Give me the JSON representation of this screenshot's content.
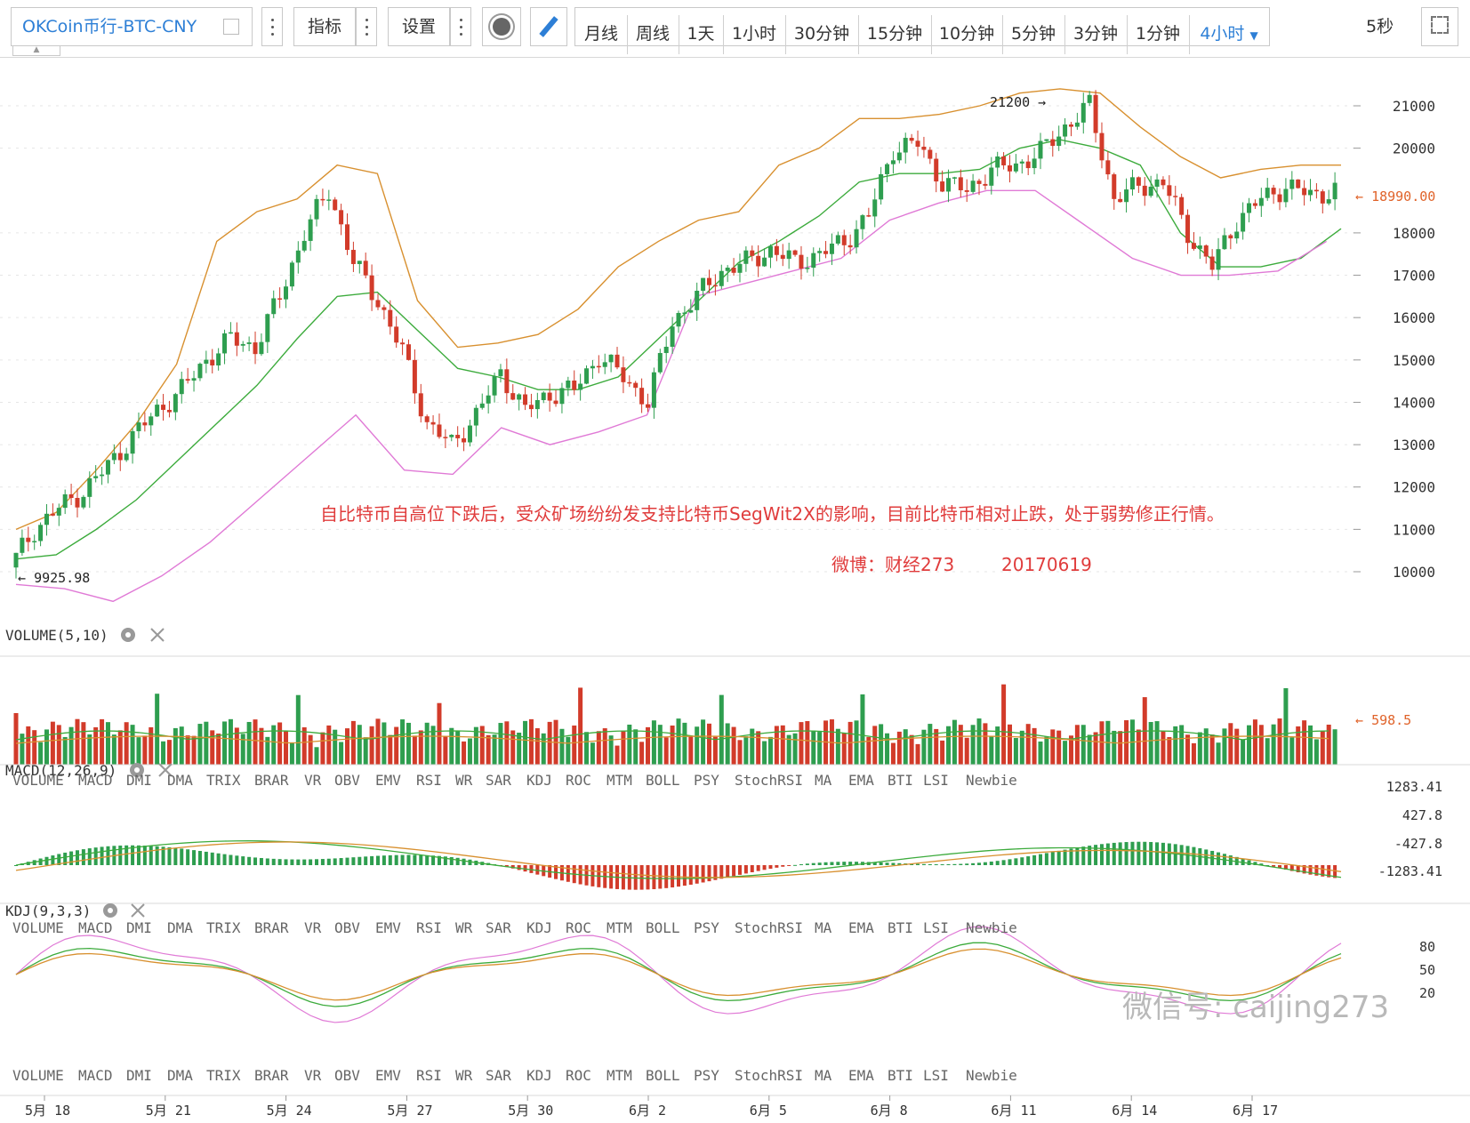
{
  "toolbar": {
    "symbol": "OKCoin币行-BTC-CNY",
    "indicators_label": "指标",
    "settings_label": "设置",
    "periods": [
      "月线",
      "周线",
      "1天",
      "1小时",
      "30分钟",
      "15分钟",
      "10分钟",
      "5分钟",
      "3分钟",
      "1分钟",
      "4小时"
    ],
    "active_period": "4小时",
    "refresh": "5秒"
  },
  "annotations": {
    "high_label": "21200",
    "low_label": "9925.98",
    "last_price": "18990.00",
    "comment": "自比特币自高位下跌后，受众矿场纷纷发支持比特币SegWit2X的影响，目前比特币相对止跌，处于弱势修正行情。",
    "source_name": "微博：财经273",
    "source_date": "20170619",
    "watermark": "微信号: caijing273"
  },
  "panes": {
    "volume": {
      "title": "VOLUME(5,10)",
      "last": "598.5"
    },
    "macd": {
      "title": "MACD(12,26,9)",
      "ticks": [
        "1283.41",
        "427.8",
        "-427.8",
        "-1283.41"
      ]
    },
    "kdj": {
      "title": "KDJ(9,3,3)",
      "ticks": [
        "80",
        "50",
        "20"
      ]
    }
  },
  "indicator_tabs": [
    "VOLUME",
    "MACD",
    "DMI",
    "DMA",
    "TRIX",
    "BRAR",
    "VR",
    "OBV",
    "EMV",
    "RSI",
    "WR",
    "SAR",
    "KDJ",
    "ROC",
    "MTM",
    "BOLL",
    "PSY",
    "StochRSI",
    "MA",
    "EMA",
    "BTI",
    "LSI",
    "Newbie"
  ],
  "colors": {
    "up": "#2e9e4f",
    "down": "#d23b2a",
    "mid": "#3cab3c",
    "upper": "#d8902f",
    "lower": "#e07ad6",
    "accent": "#2d7fd6",
    "note": "#e03c3c"
  },
  "chart_data": {
    "type": "candlestick",
    "symbol": "OKCoin BTC-CNY",
    "interval": "4小时",
    "y_ticks": [
      21000,
      20000,
      18000,
      17000,
      16000,
      15000,
      14000,
      13000,
      12000,
      11000,
      10000
    ],
    "ylim": [
      9500,
      21300
    ],
    "x_ticks": [
      "5月 18",
      "5月 21",
      "5月 24",
      "5月 27",
      "5月 30",
      "6月 2",
      "6月 5",
      "6月 8",
      "6月 11",
      "6月 14",
      "6月 17"
    ],
    "close_series": [
      [
        0,
        10100
      ],
      [
        1,
        11000
      ],
      [
        2,
        11500
      ],
      [
        3,
        11900
      ],
      [
        4,
        12500
      ],
      [
        5,
        13200
      ],
      [
        6,
        13800
      ],
      [
        7,
        14300
      ],
      [
        8,
        15000
      ],
      [
        9,
        15500
      ],
      [
        10,
        15300
      ],
      [
        11,
        16500
      ],
      [
        12,
        18000
      ],
      [
        13,
        19000
      ],
      [
        14,
        17300
      ],
      [
        15,
        16400
      ],
      [
        16,
        15200
      ],
      [
        17,
        13500
      ],
      [
        18,
        13000
      ],
      [
        19,
        13700
      ],
      [
        20,
        14700
      ],
      [
        21,
        13800
      ],
      [
        22,
        14200
      ],
      [
        23,
        14300
      ],
      [
        24,
        15100
      ],
      [
        25,
        14600
      ],
      [
        26,
        14000
      ],
      [
        27,
        15900
      ],
      [
        28,
        16500
      ],
      [
        29,
        17100
      ],
      [
        30,
        17300
      ],
      [
        31,
        17600
      ],
      [
        32,
        17300
      ],
      [
        33,
        17500
      ],
      [
        34,
        17800
      ],
      [
        35,
        18400
      ],
      [
        36,
        20000
      ],
      [
        37,
        20100
      ],
      [
        38,
        19200
      ],
      [
        39,
        19000
      ],
      [
        40,
        19500
      ],
      [
        41,
        19600
      ],
      [
        42,
        19900
      ],
      [
        43,
        20500
      ],
      [
        44,
        21000
      ],
      [
        45,
        18800
      ],
      [
        46,
        19100
      ],
      [
        47,
        19200
      ],
      [
        48,
        18000
      ],
      [
        49,
        17200
      ],
      [
        50,
        18300
      ],
      [
        51,
        18800
      ],
      [
        52,
        19100
      ],
      [
        53,
        18900
      ],
      [
        54,
        18990
      ]
    ],
    "bollinger": {
      "mid": [
        [
          0,
          10300
        ],
        [
          1,
          10400
        ],
        [
          2,
          11000
        ],
        [
          3,
          11700
        ],
        [
          4,
          12600
        ],
        [
          5,
          13500
        ],
        [
          6,
          14400
        ],
        [
          7,
          15500
        ],
        [
          8,
          16500
        ],
        [
          9,
          16600
        ],
        [
          10,
          15700
        ],
        [
          11,
          14800
        ],
        [
          12,
          14600
        ],
        [
          13,
          14300
        ],
        [
          14,
          14300
        ],
        [
          15,
          14600
        ],
        [
          16,
          15500
        ],
        [
          17,
          16400
        ],
        [
          18,
          17300
        ],
        [
          19,
          17800
        ],
        [
          20,
          18400
        ],
        [
          21,
          19200
        ],
        [
          22,
          19400
        ],
        [
          23,
          19400
        ],
        [
          24,
          19500
        ],
        [
          25,
          20000
        ],
        [
          26,
          20200
        ],
        [
          27,
          20000
        ],
        [
          28,
          19600
        ],
        [
          29,
          18000
        ],
        [
          30,
          17200
        ],
        [
          31,
          17200
        ],
        [
          32,
          17400
        ],
        [
          33,
          18100
        ]
      ],
      "upper": [
        [
          0,
          11000
        ],
        [
          1,
          11400
        ],
        [
          2,
          12400
        ],
        [
          3,
          13500
        ],
        [
          4,
          14900
        ],
        [
          5,
          17800
        ],
        [
          6,
          18500
        ],
        [
          7,
          18800
        ],
        [
          8,
          19600
        ],
        [
          9,
          19400
        ],
        [
          10,
          16400
        ],
        [
          11,
          15300
        ],
        [
          12,
          15400
        ],
        [
          13,
          15600
        ],
        [
          14,
          16200
        ],
        [
          15,
          17200
        ],
        [
          16,
          17800
        ],
        [
          17,
          18300
        ],
        [
          18,
          18500
        ],
        [
          19,
          19600
        ],
        [
          20,
          20000
        ],
        [
          21,
          20700
        ],
        [
          22,
          20700
        ],
        [
          23,
          20800
        ],
        [
          24,
          21000
        ],
        [
          25,
          21300
        ],
        [
          26,
          21400
        ],
        [
          27,
          21300
        ],
        [
          28,
          20500
        ],
        [
          29,
          19800
        ],
        [
          30,
          19300
        ],
        [
          31,
          19500
        ],
        [
          32,
          19600
        ],
        [
          33,
          19600
        ]
      ],
      "lower": [
        [
          0,
          9700
        ],
        [
          1,
          9600
        ],
        [
          2,
          9300
        ],
        [
          3,
          9900
        ],
        [
          4,
          10700
        ],
        [
          5,
          11700
        ],
        [
          6,
          12700
        ],
        [
          7,
          13700
        ],
        [
          8,
          12400
        ],
        [
          9,
          12300
        ],
        [
          10,
          13400
        ],
        [
          11,
          13000
        ],
        [
          12,
          13300
        ],
        [
          13,
          13700
        ],
        [
          14,
          16500
        ],
        [
          15,
          16800
        ],
        [
          16,
          17100
        ],
        [
          17,
          17400
        ],
        [
          18,
          18300
        ],
        [
          19,
          18700
        ],
        [
          20,
          19000
        ],
        [
          21,
          19000
        ],
        [
          22,
          18200
        ],
        [
          23,
          17400
        ],
        [
          24,
          17000
        ],
        [
          25,
          17000
        ],
        [
          26,
          17100
        ],
        [
          27,
          17800
        ]
      ]
    },
    "volume_last": 598.5,
    "macd_range": [
      -1283.41,
      1283.41
    ],
    "kdj_levels": [
      80,
      50,
      20
    ]
  }
}
